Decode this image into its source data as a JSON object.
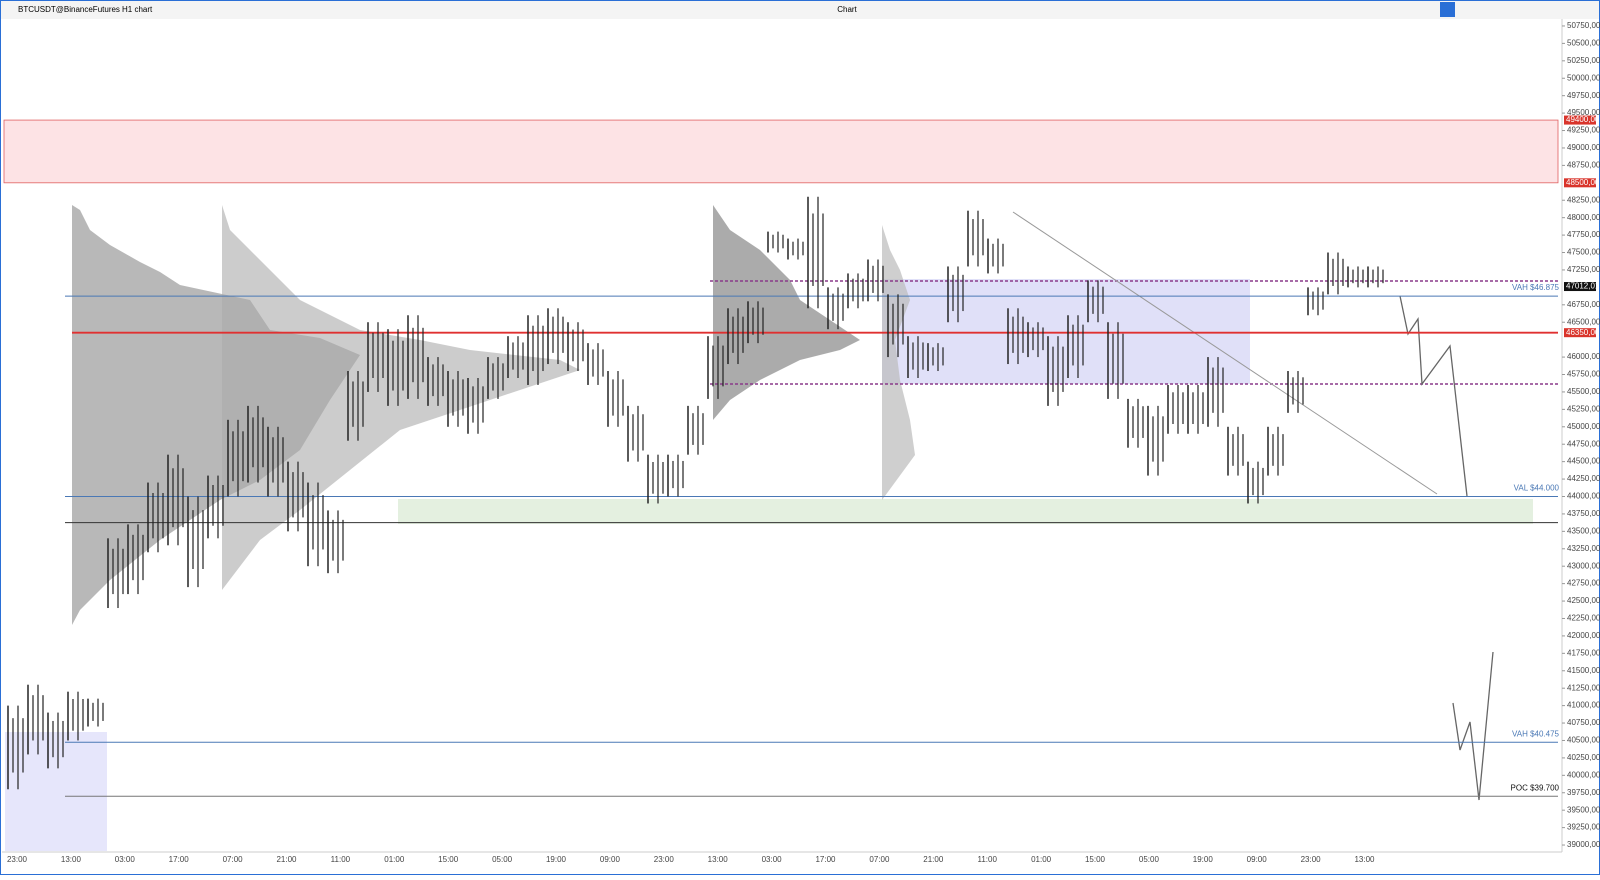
{
  "toolbar": {
    "symbol": "BTCUSDT@BinanceFutures",
    "interval": "H1 chart",
    "window_title": "Chart"
  },
  "chart_data": {
    "type": "ohlc",
    "categories": [
      "23:00",
      "13:00",
      "03:00",
      "17:00",
      "07:00",
      "21:00",
      "11:00",
      "01:00",
      "15:00",
      "05:00",
      "19:00",
      "09:00",
      "23:00",
      "13:00",
      "03:00",
      "17:00",
      "07:00",
      "21:00",
      "11:00",
      "01:00",
      "15:00",
      "05:00",
      "19:00",
      "09:00",
      "23:00",
      "13:00"
    ],
    "ylim": [
      38900,
      50850
    ],
    "yticks": [
      {
        "value": 50750,
        "label": "50750,00"
      },
      {
        "value": 50500,
        "label": "50500,00"
      },
      {
        "value": 50250,
        "label": "50250,00"
      },
      {
        "value": 50000,
        "label": "50000,00"
      },
      {
        "value": 49750,
        "label": "49750,00"
      },
      {
        "value": 49500,
        "label": "49500,00"
      },
      {
        "value": 49250,
        "label": "49250,00"
      },
      {
        "value": 49000,
        "label": "49000,00"
      },
      {
        "value": 48750,
        "label": "48750,00"
      },
      {
        "value": 48250,
        "label": "48250,00"
      },
      {
        "value": 48000,
        "label": "48000,00"
      },
      {
        "value": 47750,
        "label": "47750,00"
      },
      {
        "value": 47500,
        "label": "47500,00"
      },
      {
        "value": 47250,
        "label": "47250,00"
      },
      {
        "value": 46750,
        "label": "46750,00"
      },
      {
        "value": 46500,
        "label": "46500,00"
      },
      {
        "value": 46000,
        "label": "46000,00"
      },
      {
        "value": 45750,
        "label": "45750,00"
      },
      {
        "value": 45500,
        "label": "45500,00"
      },
      {
        "value": 45250,
        "label": "45250,00"
      },
      {
        "value": 45000,
        "label": "45000,00"
      },
      {
        "value": 44750,
        "label": "44750,00"
      },
      {
        "value": 44500,
        "label": "44500,00"
      },
      {
        "value": 44250,
        "label": "44250,00"
      },
      {
        "value": 44000,
        "label": "44000,00"
      },
      {
        "value": 43750,
        "label": "43750,00"
      },
      {
        "value": 43500,
        "label": "43500,00"
      },
      {
        "value": 43250,
        "label": "43250,00"
      },
      {
        "value": 43000,
        "label": "43000,00"
      },
      {
        "value": 42750,
        "label": "42750,00"
      },
      {
        "value": 42500,
        "label": "42500,00"
      },
      {
        "value": 42250,
        "label": "42250,00"
      },
      {
        "value": 42000,
        "label": "42000,00"
      },
      {
        "value": 41750,
        "label": "41750,00"
      },
      {
        "value": 41500,
        "label": "41500,00"
      },
      {
        "value": 41250,
        "label": "41250,00"
      },
      {
        "value": 41000,
        "label": "41000,00"
      },
      {
        "value": 40750,
        "label": "40750,00"
      },
      {
        "value": 40500,
        "label": "40500,00"
      },
      {
        "value": 40250,
        "label": "40250,00"
      },
      {
        "value": 40000,
        "label": "40000,00"
      },
      {
        "value": 39750,
        "label": "39750,00"
      },
      {
        "value": 39500,
        "label": "39500,00"
      },
      {
        "value": 39250,
        "label": "39250,00"
      },
      {
        "value": 39000,
        "label": "39000,00"
      }
    ],
    "high": [
      41000,
      41300,
      40900,
      41200,
      41100,
      43400,
      43600,
      44200,
      44600,
      44000,
      44300,
      45100,
      45300,
      45000,
      44500,
      44200,
      43800,
      45800,
      46500,
      46400,
      46600,
      46000,
      45800,
      45700,
      46000,
      46300,
      46600,
      46700,
      46500,
      46200,
      45800,
      45300,
      44600,
      44600,
      45300,
      46300,
      46700,
      46800,
      47800,
      47700,
      48300,
      47000,
      47200,
      47400,
      46900,
      46300,
      46200,
      47300,
      48100,
      47700,
      46700,
      46500,
      46300,
      46600,
      47100,
      46500,
      45400,
      45300,
      45600,
      45600,
      46000,
      45000,
      44500,
      45000,
      45800,
      47000,
      47500,
      47300,
      47300
    ],
    "low": [
      39800,
      40300,
      40100,
      40500,
      40700,
      42400,
      42600,
      43200,
      43300,
      42700,
      43400,
      44000,
      44200,
      44000,
      43500,
      43000,
      42900,
      44800,
      45500,
      45300,
      45400,
      45300,
      45000,
      44900,
      45400,
      45700,
      45600,
      45900,
      45800,
      45600,
      45000,
      44500,
      43900,
      44000,
      44600,
      45400,
      45900,
      46200,
      47500,
      47400,
      46700,
      46400,
      46700,
      46800,
      46000,
      45700,
      45800,
      46500,
      47300,
      47200,
      45900,
      46000,
      45300,
      45700,
      46500,
      45400,
      44700,
      44300,
      44900,
      44900,
      45000,
      44300,
      43900,
      44300,
      45200,
      46600,
      46900,
      47000,
      47000
    ],
    "color": "#222222",
    "zone": {
      "from": 48500,
      "to": 49400,
      "color": "#fde3e5"
    },
    "levels": [
      {
        "value": 46875,
        "color": "#4a78b5"
      },
      {
        "value": 46350,
        "color": "#e03030"
      },
      {
        "value": 44000,
        "color": "#4a78b5"
      },
      {
        "value": 43625,
        "color": "#333333"
      },
      {
        "value": 40475,
        "color": "#4a78b5"
      },
      {
        "value": 39700,
        "color": "#777777"
      }
    ],
    "annotations": [
      {
        "text": "VAH $46.875",
        "value": 46875,
        "color": "#4a78b5"
      },
      {
        "text": "VAL $44.000",
        "value": 44000,
        "color": "#4a78b5"
      },
      {
        "text": "VAH $40.475",
        "value": 40475,
        "color": "#4a78b5"
      },
      {
        "text": "POC $39.700",
        "value": 39700,
        "color": "#111111"
      }
    ],
    "price_tags": [
      {
        "value": 49400,
        "label": "49400,00",
        "color": "#d9342b"
      },
      {
        "value": 48500,
        "label": "48500,00",
        "color": "#d9342b"
      },
      {
        "value": 47012.01,
        "label": "47012,01",
        "color": "#111111"
      },
      {
        "value": 46350,
        "label": "46350,00",
        "color": "#d9342b"
      }
    ]
  }
}
